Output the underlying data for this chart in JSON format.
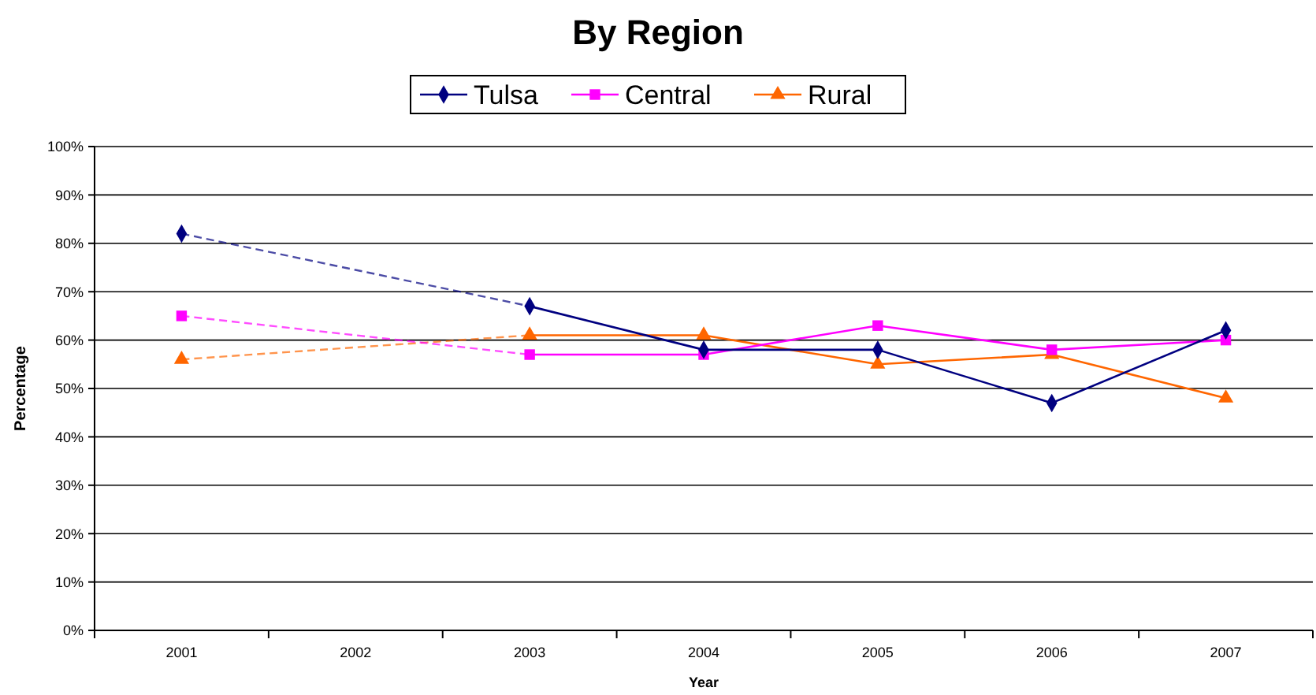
{
  "chart_data": {
    "type": "line",
    "title": "By Region",
    "xlabel": "Year",
    "ylabel": "Percentage",
    "categories": [
      "2001",
      "2002",
      "2003",
      "2004",
      "2005",
      "2006",
      "2007"
    ],
    "series": [
      {
        "name": "Tulsa",
        "color": "#000080",
        "marker": "diamond",
        "values": [
          82,
          null,
          67,
          58,
          58,
          47,
          62
        ]
      },
      {
        "name": "Central",
        "color": "#ff00ff",
        "marker": "square",
        "values": [
          65,
          null,
          57,
          57,
          63,
          58,
          60
        ]
      },
      {
        "name": "Rural",
        "color": "#ff6600",
        "marker": "triangle",
        "values": [
          56,
          null,
          61,
          61,
          55,
          57,
          48
        ]
      }
    ],
    "ylim": [
      0,
      100
    ],
    "yticks": [
      {
        "value": 0,
        "label": "0%"
      },
      {
        "value": 10,
        "label": "10%"
      },
      {
        "value": 20,
        "label": "20%"
      },
      {
        "value": 30,
        "label": "30%"
      },
      {
        "value": 40,
        "label": "40%"
      },
      {
        "value": 50,
        "label": "50%"
      },
      {
        "value": 60,
        "label": "60%"
      },
      {
        "value": 70,
        "label": "70%"
      },
      {
        "value": 80,
        "label": "80%"
      },
      {
        "value": 90,
        "label": "90%"
      },
      {
        "value": 100,
        "label": "100%"
      }
    ],
    "grid": "y",
    "legend": "top",
    "line_style": "solid"
  }
}
